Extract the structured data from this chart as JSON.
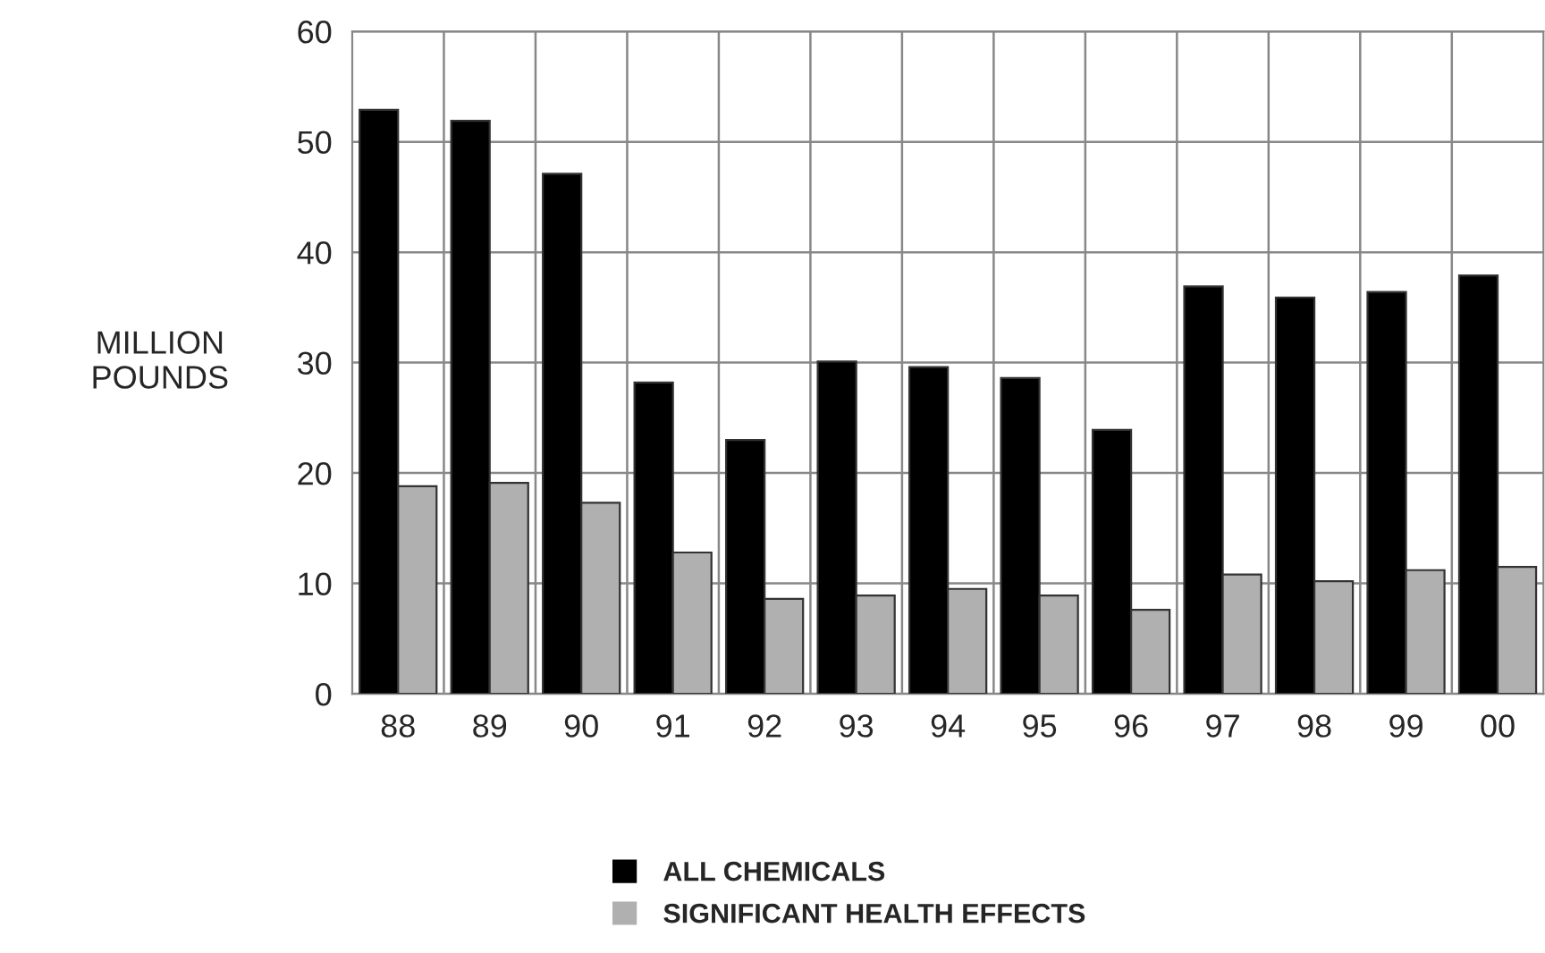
{
  "chart_data": {
    "type": "bar",
    "ylabel": "MILLION\nPOUNDS",
    "categories": [
      "88",
      "89",
      "90",
      "91",
      "92",
      "93",
      "94",
      "95",
      "96",
      "97",
      "98",
      "99",
      "00"
    ],
    "series": [
      {
        "name": "ALL CHEMICALS",
        "color": "#000000",
        "values": [
          52.9,
          51.9,
          47.1,
          28.2,
          23.0,
          30.1,
          29.6,
          28.6,
          23.9,
          36.9,
          35.9,
          36.4,
          37.9
        ]
      },
      {
        "name": "SIGNIFICANT HEALTH EFFECTS",
        "color": "#b0b0b0",
        "values": [
          18.8,
          19.1,
          17.3,
          12.8,
          8.6,
          8.9,
          9.5,
          8.9,
          7.6,
          10.8,
          10.2,
          11.2,
          11.5
        ]
      }
    ],
    "ylim": [
      0,
      60
    ],
    "yticks": [
      0,
      10,
      20,
      30,
      40,
      50,
      60
    ],
    "grid": true,
    "legend": "bottom"
  }
}
